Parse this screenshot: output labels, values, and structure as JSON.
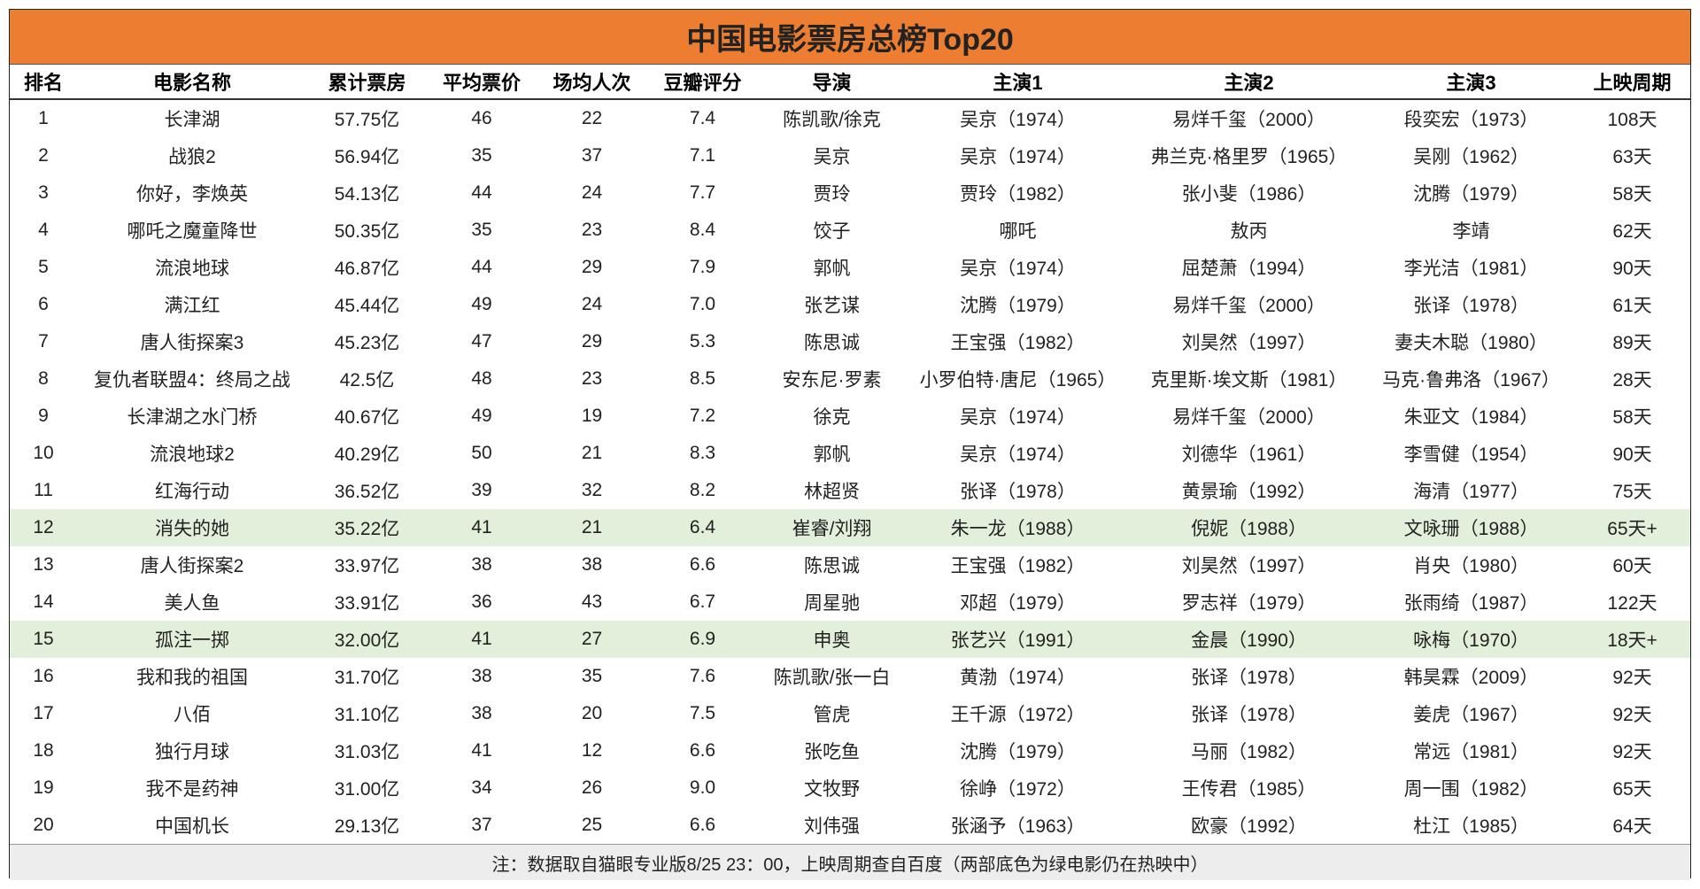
{
  "title": "中国电影票房总榜Top20",
  "table": {
    "header": [
      "排名",
      "电影名称",
      "累计票房",
      "平均票价",
      "场均人次",
      "豆瓣评分",
      "导演",
      "主演1",
      "主演2",
      "主演3",
      "上映周期"
    ],
    "rows": [
      {
        "cells": [
          "1",
          "长津湖",
          "57.75亿",
          "46",
          "22",
          "7.4",
          "陈凯歌/徐克",
          "吴京（1974）",
          "易烊千玺（2000）",
          "段奕宏（1973）",
          "108天"
        ]
      },
      {
        "cells": [
          "2",
          "战狼2",
          "56.94亿",
          "35",
          "37",
          "7.1",
          "吴京",
          "吴京（1974）",
          "弗兰克·格里罗（1965）",
          "吴刚（1962）",
          "63天"
        ]
      },
      {
        "cells": [
          "3",
          "你好，李焕英",
          "54.13亿",
          "44",
          "24",
          "7.7",
          "贾玲",
          "贾玲（1982）",
          "张小斐（1986）",
          "沈腾（1979）",
          "58天"
        ]
      },
      {
        "cells": [
          "4",
          "哪吒之魔童降世",
          "50.35亿",
          "35",
          "23",
          "8.4",
          "饺子",
          "哪吒",
          "敖丙",
          "李靖",
          "62天"
        ]
      },
      {
        "cells": [
          "5",
          "流浪地球",
          "46.87亿",
          "44",
          "29",
          "7.9",
          "郭帆",
          "吴京（1974）",
          "屈楚萧（1994）",
          "李光洁（1981）",
          "90天"
        ]
      },
      {
        "cells": [
          "6",
          "满江红",
          "45.44亿",
          "49",
          "24",
          "7.0",
          "张艺谋",
          "沈腾（1979）",
          "易烊千玺（2000）",
          "张译（1978）",
          "61天"
        ]
      },
      {
        "cells": [
          "7",
          "唐人街探案3",
          "45.23亿",
          "47",
          "29",
          "5.3",
          "陈思诚",
          "王宝强（1982）",
          "刘昊然（1997）",
          "妻夫木聪（1980）",
          "89天"
        ]
      },
      {
        "cells": [
          "8",
          "复仇者联盟4：终局之战",
          "42.5亿",
          "48",
          "23",
          "8.5",
          "安东尼·罗素",
          "小罗伯特·唐尼（1965）",
          "克里斯·埃文斯（1981）",
          "马克·鲁弗洛（1967）",
          "28天"
        ]
      },
      {
        "cells": [
          "9",
          "长津湖之水门桥",
          "40.67亿",
          "49",
          "19",
          "7.2",
          "徐克",
          "吴京（1974）",
          "易烊千玺（2000）",
          "朱亚文（1984）",
          "58天"
        ]
      },
      {
        "cells": [
          "10",
          "流浪地球2",
          "40.29亿",
          "50",
          "21",
          "8.3",
          "郭帆",
          "吴京（1974）",
          "刘德华（1961）",
          "李雪健（1954）",
          "90天"
        ]
      },
      {
        "cells": [
          "11",
          "红海行动",
          "36.52亿",
          "39",
          "32",
          "8.2",
          "林超贤",
          "张译（1978）",
          "黄景瑜（1992）",
          "海清（1977）",
          "75天"
        ]
      },
      {
        "cells": [
          "12",
          "消失的她",
          "35.22亿",
          "41",
          "21",
          "6.4",
          "崔睿/刘翔",
          "朱一龙（1988）",
          "倪妮（1988）",
          "文咏珊（1988）",
          "65天+"
        ],
        "background": "#e2efda"
      },
      {
        "cells": [
          "13",
          "唐人街探案2",
          "33.97亿",
          "38",
          "38",
          "6.6",
          "陈思诚",
          "王宝强（1982）",
          "刘昊然（1997）",
          "肖央（1980）",
          "60天"
        ]
      },
      {
        "cells": [
          "14",
          "美人鱼",
          "33.91亿",
          "36",
          "43",
          "6.7",
          "周星驰",
          "邓超（1979）",
          "罗志祥（1979）",
          "张雨绮（1987）",
          "122天"
        ]
      },
      {
        "cells": [
          "15",
          "孤注一掷",
          "32.00亿",
          "41",
          "27",
          "6.9",
          "申奥",
          "张艺兴（1991）",
          "金晨（1990）",
          "咏梅（1970）",
          "18天+"
        ],
        "background": "#e2efda"
      },
      {
        "cells": [
          "16",
          "我和我的祖国",
          "31.70亿",
          "38",
          "35",
          "7.6",
          "陈凯歌/张一白",
          "黄渤（1974）",
          "张译（1978）",
          "韩昊霖（2009）",
          "92天"
        ]
      },
      {
        "cells": [
          "17",
          "八佰",
          "31.10亿",
          "38",
          "20",
          "7.5",
          "管虎",
          "王千源（1972）",
          "张译（1978）",
          "姜虎（1967）",
          "92天"
        ]
      },
      {
        "cells": [
          "18",
          "独行月球",
          "31.03亿",
          "41",
          "12",
          "6.6",
          "张吃鱼",
          "沈腾（1979）",
          "马丽（1982）",
          "常远（1981）",
          "92天"
        ]
      },
      {
        "cells": [
          "19",
          "我不是药神",
          "31.00亿",
          "34",
          "26",
          "9.0",
          "文牧野",
          "徐峥（1972）",
          "王传君（1985）",
          "周一围（1982）",
          "65天"
        ]
      },
      {
        "cells": [
          "20",
          "中国机长",
          "29.13亿",
          "37",
          "25",
          "6.6",
          "刘伟强",
          "张涵予（1963）",
          "欧豪（1992）",
          "杜江（1985）",
          "64天"
        ]
      }
    ]
  },
  "note": "注：数据取自猫眼专业版8/25 23：00，上映周期查自百度（两部底色为绿电影仍在热映中）"
}
